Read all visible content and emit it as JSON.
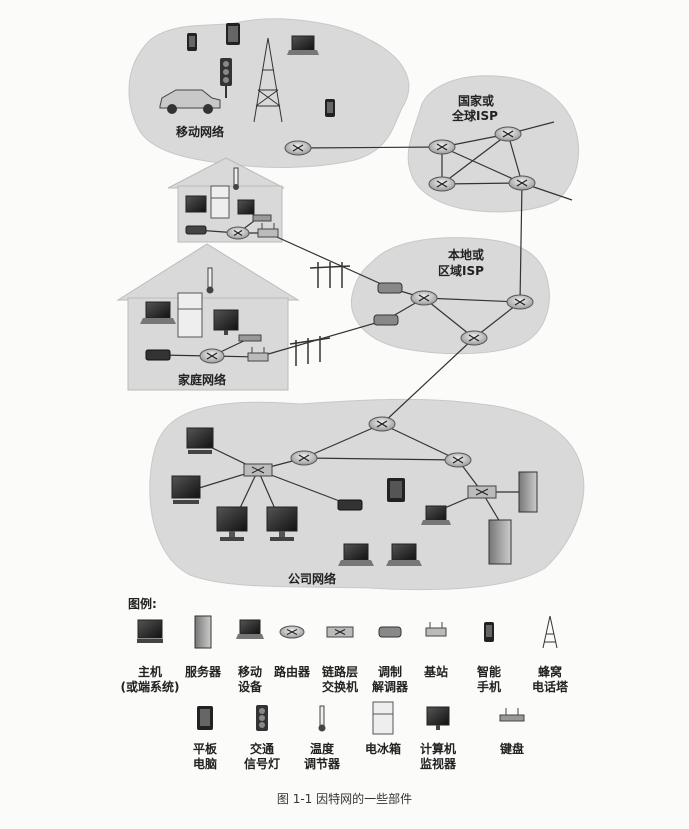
{
  "regions": {
    "mobile": "移动网络",
    "global_isp_line1": "国家或",
    "global_isp_line2": "全球ISP",
    "local_isp_line1": "本地或",
    "local_isp_line2": "区域ISP",
    "home": "家庭网络",
    "enterprise": "公司网络"
  },
  "legend": {
    "title": "图例:",
    "items": [
      {
        "line1": "主机",
        "line2": "(或端系统)"
      },
      {
        "line1": "服务器",
        "line2": ""
      },
      {
        "line1": "移动",
        "line2": "设备"
      },
      {
        "line1": "路由器",
        "line2": ""
      },
      {
        "line1": "链路层",
        "line2": "交换机"
      },
      {
        "line1": "调制",
        "line2": "解调器"
      },
      {
        "line1": "基站",
        "line2": ""
      },
      {
        "line1": "智能",
        "line2": "手机"
      },
      {
        "line1": "蜂窝",
        "line2": "电话塔"
      },
      {
        "line1": "平板",
        "line2": "电脑"
      },
      {
        "line1": "交通",
        "line2": "信号灯"
      },
      {
        "line1": "温度",
        "line2": "调节器"
      },
      {
        "line1": "电冰箱",
        "line2": ""
      },
      {
        "line1": "计算机",
        "line2": "监视器"
      },
      {
        "line1": "键盘",
        "line2": ""
      }
    ]
  },
  "caption": "图 1-1   因特网的一些部件"
}
